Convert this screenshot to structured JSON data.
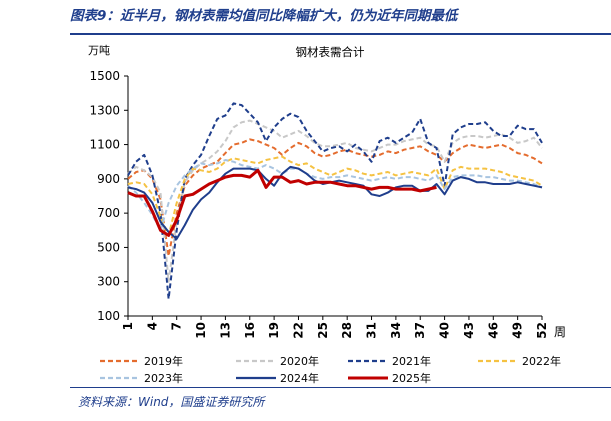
{
  "header": {
    "title": "图表9：近半月，钢材表需均值同比降幅扩大，仍为近年同期最低"
  },
  "source": "资料来源：Wind，国盛证券研究所",
  "chart_data": {
    "type": "line",
    "title": "钢材表需合计",
    "ylabel": "万吨",
    "xlabel": "周",
    "ylim": [
      100,
      1500
    ],
    "yticks": [
      100,
      300,
      500,
      700,
      900,
      1100,
      1300,
      1500
    ],
    "xticks": [
      1,
      4,
      7,
      10,
      13,
      16,
      19,
      22,
      25,
      28,
      31,
      34,
      37,
      40,
      43,
      46,
      49,
      52
    ],
    "xlim": [
      1,
      52
    ],
    "grid": false,
    "legend_position": "bottom",
    "series": [
      {
        "name": "2019年",
        "color": "#e46c2e",
        "dash": "dash",
        "values": [
          900,
          940,
          950,
          900,
          780,
          450,
          700,
          860,
          920,
          960,
          980,
          1000,
          1050,
          1100,
          1110,
          1130,
          1120,
          1100,
          1080,
          1040,
          1080,
          1110,
          1090,
          1050,
          1030,
          1040,
          1060,
          1070,
          1050,
          1040,
          1030,
          1040,
          1060,
          1050,
          1070,
          1080,
          1090,
          1060,
          1040,
          1000,
          1050,
          1080,
          1100,
          1090,
          1080,
          1090,
          1100,
          1080,
          1050,
          1040,
          1020,
          990
        ]
      },
      {
        "name": "2020年",
        "color": "#c8c8c8",
        "dash": "dash",
        "values": [
          930,
          970,
          950,
          910,
          820,
          300,
          650,
          880,
          950,
          990,
          1020,
          1060,
          1120,
          1200,
          1230,
          1240,
          1220,
          1200,
          1180,
          1140,
          1160,
          1180,
          1150,
          1110,
          1090,
          1090,
          1100,
          1110,
          1080,
          1070,
          1060,
          1080,
          1100,
          1100,
          1120,
          1130,
          1140,
          1100,
          1090,
          1000,
          1110,
          1140,
          1150,
          1150,
          1140,
          1150,
          1160,
          1140,
          1110,
          1120,
          1140,
          1080
        ]
      },
      {
        "name": "2021年",
        "color": "#1f3e8c",
        "dash": "dash",
        "values": [
          920,
          1000,
          1040,
          920,
          700,
          200,
          600,
          900,
          980,
          1040,
          1150,
          1250,
          1270,
          1340,
          1330,
          1280,
          1230,
          1120,
          1200,
          1250,
          1280,
          1260,
          1180,
          1120,
          1060,
          1080,
          1090,
          1060,
          1100,
          1060,
          1000,
          1120,
          1140,
          1110,
          1140,
          1170,
          1250,
          1110,
          1080,
          860,
          1160,
          1200,
          1220,
          1220,
          1230,
          1180,
          1150,
          1150,
          1210,
          1190,
          1190,
          1110
        ]
      },
      {
        "name": "2022年",
        "color": "#f5c242",
        "dash": "dash",
        "values": [
          870,
          880,
          870,
          810,
          680,
          570,
          760,
          900,
          960,
          950,
          940,
          960,
          1000,
          1020,
          1010,
          1000,
          990,
          1010,
          1020,
          1030,
          1000,
          980,
          990,
          960,
          940,
          920,
          940,
          960,
          950,
          930,
          920,
          930,
          940,
          920,
          930,
          940,
          930,
          920,
          960,
          840,
          950,
          970,
          960,
          960,
          960,
          950,
          940,
          920,
          910,
          900,
          890,
          860
        ]
      },
      {
        "name": "2023年",
        "color": "#a8c4e0",
        "dash": "dash",
        "values": [
          860,
          820,
          760,
          690,
          600,
          760,
          860,
          920,
          960,
          990,
          980,
          990,
          1010,
          1000,
          980,
          970,
          960,
          980,
          960,
          930,
          960,
          960,
          930,
          910,
          900,
          910,
          910,
          920,
          910,
          900,
          890,
          900,
          910,
          900,
          910,
          910,
          900,
          890,
          920,
          840,
          910,
          920,
          920,
          920,
          910,
          910,
          900,
          890,
          890,
          880,
          870,
          850
        ]
      },
      {
        "name": "2024年",
        "color": "#1f3e8c",
        "dash": "solid",
        "values": [
          850,
          840,
          820,
          760,
          650,
          590,
          550,
          630,
          720,
          780,
          820,
          880,
          930,
          960,
          960,
          960,
          950,
          900,
          860,
          930,
          970,
          960,
          930,
          890,
          870,
          880,
          890,
          880,
          870,
          860,
          810,
          800,
          820,
          850,
          860,
          860,
          830,
          830,
          870,
          810,
          890,
          910,
          900,
          880,
          880,
          870,
          870,
          870,
          880,
          870,
          860,
          850
        ]
      },
      {
        "name": "2025年",
        "color": "#c00000",
        "dash": "solid",
        "values": [
          820,
          800,
          800,
          710,
          600,
          570,
          660,
          800,
          810,
          840,
          870,
          890,
          910,
          920,
          920,
          910,
          950,
          850,
          910,
          910,
          880,
          890,
          870,
          880,
          880,
          880,
          870,
          860,
          860,
          850,
          840,
          850,
          850,
          840,
          840,
          840,
          830,
          840,
          850
        ]
      }
    ]
  }
}
